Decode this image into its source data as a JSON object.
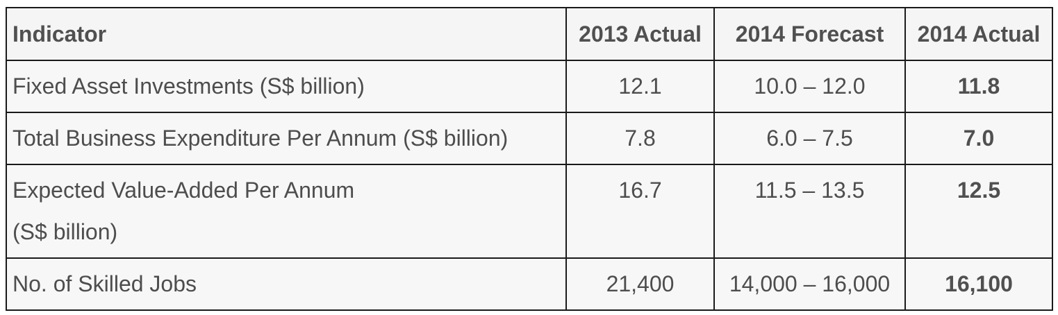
{
  "table": {
    "headers": [
      "Indicator",
      "2013 Actual",
      "2014 Forecast",
      "2014 Actual"
    ],
    "rows": [
      {
        "indicator": "Fixed Asset Investments (S$ billion)",
        "actual_2013": "12.1",
        "forecast_2014": "10.0 – 12.0",
        "actual_2014": "11.8"
      },
      {
        "indicator": "Total Business Expenditure Per Annum (S$ billion)",
        "actual_2013": "7.8",
        "forecast_2014": "6.0 – 7.5",
        "actual_2014": "7.0"
      },
      {
        "indicator_line1": "Expected Value-Added Per Annum",
        "indicator_line2": "(S$ billion)",
        "actual_2013": "16.7",
        "forecast_2014": "11.5 – 13.5",
        "actual_2014": "12.5"
      },
      {
        "indicator": "No. of Skilled Jobs",
        "actual_2013": "21,400",
        "forecast_2014": "14,000 – 16,000",
        "actual_2014": "16,100"
      }
    ]
  }
}
